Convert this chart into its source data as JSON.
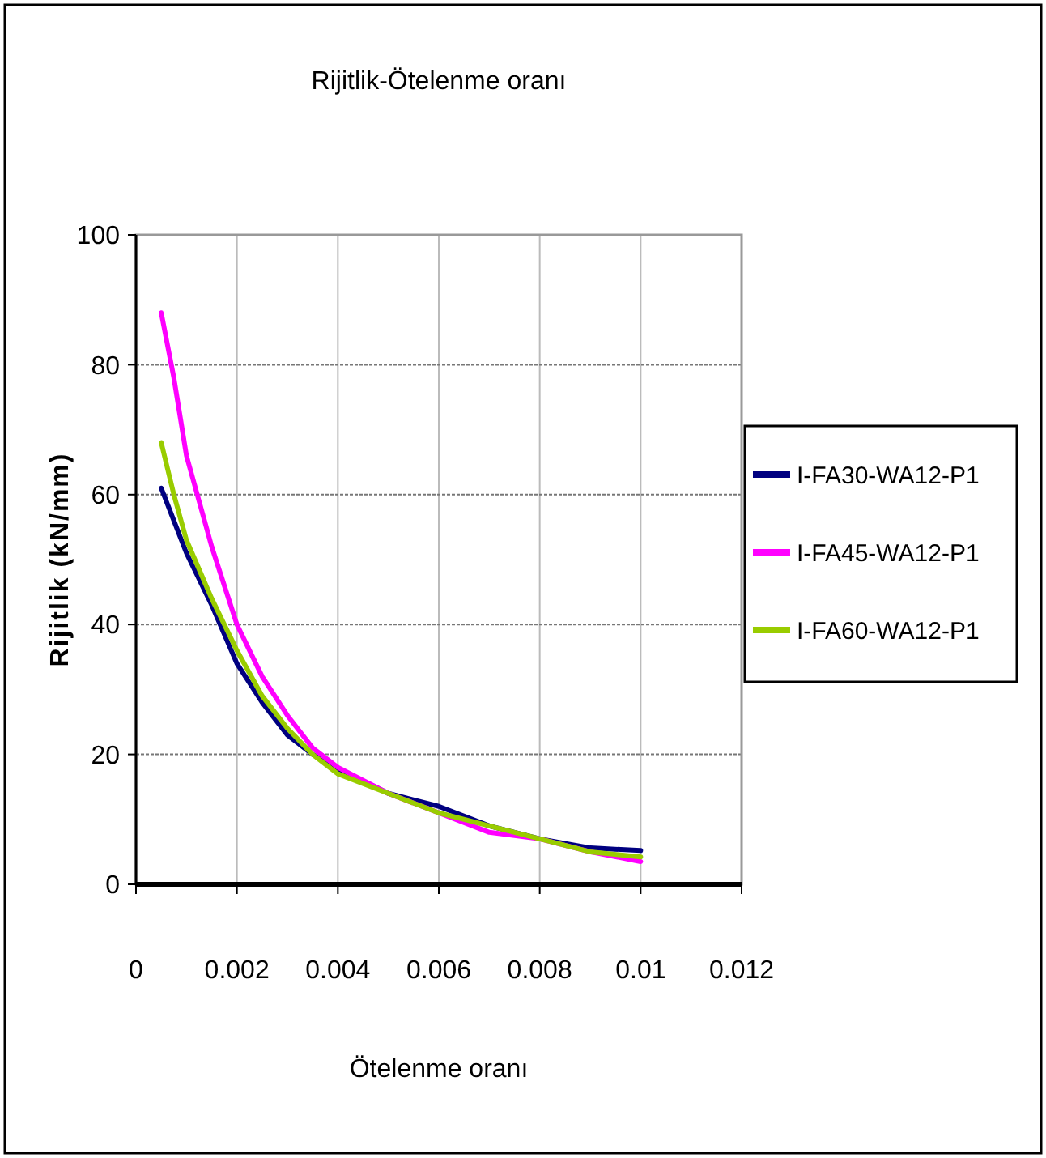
{
  "chart_data": {
    "type": "line",
    "title": "Rijitlik-Ötelenme oranı",
    "xlabel": "Ötelenme oranı",
    "ylabel": "Rijitlik  (kN/mm)",
    "xlim": [
      0,
      0.012
    ],
    "xticks": [
      0,
      0.002,
      0.004,
      0.006,
      0.008,
      0.01,
      0.012
    ],
    "ylim": [
      0,
      100
    ],
    "yticks": [
      0,
      20,
      40,
      60,
      80,
      100
    ],
    "grid": true,
    "legend": "right",
    "series": [
      {
        "name": "I-FA30-WA12-P1",
        "color": "#000080",
        "x": [
          0.0005,
          0.00075,
          0.001,
          0.0015,
          0.002,
          0.0025,
          0.003,
          0.0035,
          0.004,
          0.005,
          0.006,
          0.007,
          0.008,
          0.009,
          0.01
        ],
        "values": [
          61,
          56,
          51,
          43,
          34,
          28,
          23,
          20,
          17.8,
          14,
          12,
          9,
          7,
          5.6,
          5.2
        ]
      },
      {
        "name": "I-FA45-WA12-P1",
        "color": "#ff00ff",
        "x": [
          0.0005,
          0.00075,
          0.001,
          0.0015,
          0.002,
          0.0025,
          0.003,
          0.0035,
          0.004,
          0.005,
          0.006,
          0.007,
          0.008,
          0.009,
          0.01
        ],
        "values": [
          88,
          78,
          66,
          52,
          40,
          32,
          26,
          21,
          18,
          14,
          11,
          8,
          7,
          5,
          3.5
        ]
      },
      {
        "name": "I-FA60-WA12-P1",
        "color": "#99cc00",
        "x": [
          0.0005,
          0.00075,
          0.001,
          0.0015,
          0.002,
          0.0025,
          0.003,
          0.0035,
          0.004,
          0.005,
          0.006,
          0.007,
          0.008,
          0.009,
          0.01
        ],
        "values": [
          68,
          60,
          53,
          44,
          36,
          29,
          24,
          20,
          17,
          14,
          11,
          9,
          7,
          5,
          4.2
        ]
      }
    ]
  }
}
